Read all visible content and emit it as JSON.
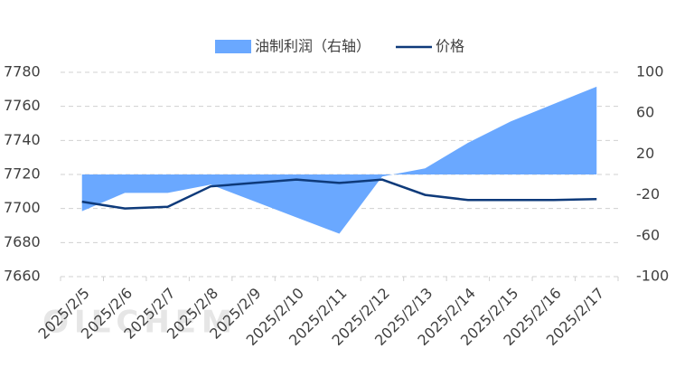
{
  "chart_data": {
    "type": "area-line",
    "watermark": "OILCHEM",
    "categories": [
      "2025/2/5",
      "2025/2/6",
      "2025/2/7",
      "2025/2/8",
      "2025/2/9",
      "2025/2/10",
      "2025/2/11",
      "2025/2/12",
      "2025/2/13",
      "2025/2/14",
      "2025/2/15",
      "2025/2/16",
      "2025/2/17"
    ],
    "series": [
      {
        "name": "油制利润（右轴）",
        "type": "area",
        "axis": "y2",
        "color": "#6aa8ff",
        "values": [
          -36,
          -18,
          -18,
          -10,
          -26,
          -42,
          -58,
          -2,
          6,
          31,
          52,
          69,
          86
        ]
      },
      {
        "name": "价格",
        "type": "line",
        "color": "#0e3a7a",
        "values": [
          7704,
          7700,
          7701,
          7713,
          7715,
          7717,
          7715,
          7717,
          7708,
          7705,
          7705,
          7705,
          7705.5
        ]
      }
    ],
    "ylim": [
      7660,
      7780
    ],
    "yticks": [
      7660,
      7680,
      7700,
      7720,
      7740,
      7760,
      7780
    ],
    "y2lim": [
      -100,
      100
    ],
    "y2ticks": [
      -100,
      -60,
      -20,
      20,
      60,
      100
    ],
    "grid": true,
    "legend": "top"
  }
}
